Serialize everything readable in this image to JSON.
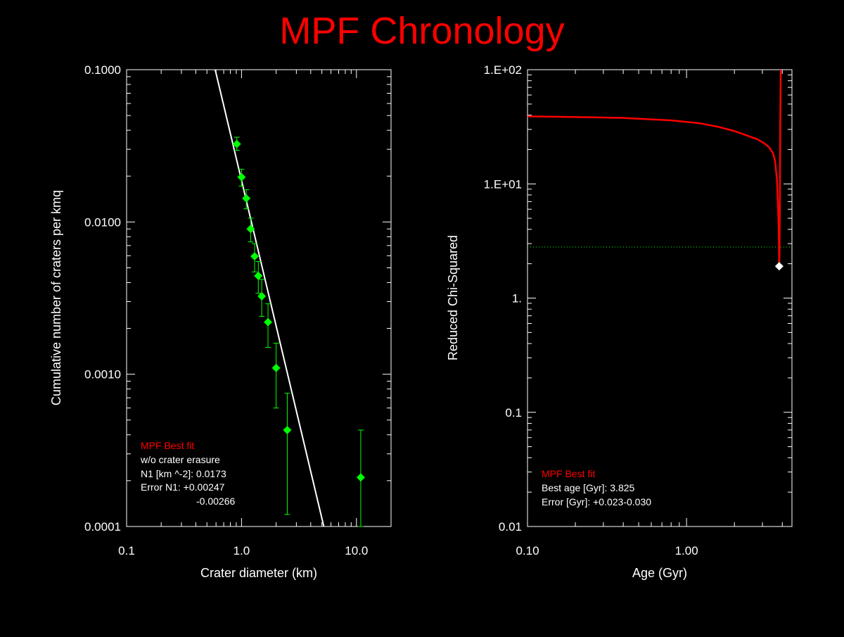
{
  "title": "MPF Chronology",
  "colors": {
    "background": "#000000",
    "title": "#ff0000",
    "axis": "#ffffff",
    "data_points": "#00ff00",
    "fit_line": "#ffffff",
    "chi_curve": "#ff0000",
    "threshold": "#00ff00",
    "best_marker": "#ffffff",
    "legend_heading": "#ff0000",
    "legend_text": "#ffffff"
  },
  "chart_data": [
    {
      "type": "scatter",
      "xlabel": "Crater diameter (km)",
      "ylabel": "Cumulative number of craters per kmq",
      "x_scale": "log",
      "y_scale": "log",
      "xlim": [
        0.1,
        20
      ],
      "ylim": [
        0.0001,
        0.1
      ],
      "x_ticks": [
        {
          "value": 0.1,
          "label": "0.1"
        },
        {
          "value": 1.0,
          "label": "1.0"
        },
        {
          "value": 10.0,
          "label": "10.0"
        }
      ],
      "y_ticks": [
        {
          "value": 0.0001,
          "label": "0.0001"
        },
        {
          "value": 0.001,
          "label": "0.0010"
        },
        {
          "value": 0.01,
          "label": "0.0100"
        },
        {
          "value": 0.1,
          "label": "0.1000"
        }
      ],
      "points": [
        {
          "x": 0.91,
          "y": 0.0325,
          "y_low": 0.0295,
          "y_high": 0.036
        },
        {
          "x": 1.0,
          "y": 0.0197,
          "y_low": 0.0172,
          "y_high": 0.0222
        },
        {
          "x": 1.1,
          "y": 0.0143,
          "y_low": 0.0122,
          "y_high": 0.0163
        },
        {
          "x": 1.2,
          "y": 0.009,
          "y_low": 0.0074,
          "y_high": 0.0106
        },
        {
          "x": 1.3,
          "y": 0.00595,
          "y_low": 0.0047,
          "y_high": 0.0072
        },
        {
          "x": 1.4,
          "y": 0.00443,
          "y_low": 0.0034,
          "y_high": 0.0055
        },
        {
          "x": 1.5,
          "y": 0.00325,
          "y_low": 0.0024,
          "y_high": 0.0042
        },
        {
          "x": 1.7,
          "y": 0.0022,
          "y_low": 0.0015,
          "y_high": 0.0029
        },
        {
          "x": 2.0,
          "y": 0.0011,
          "y_low": 0.0006,
          "y_high": 0.0016
        },
        {
          "x": 2.5,
          "y": 0.00043,
          "y_low": 0.00012,
          "y_high": 0.00075
        },
        {
          "x": 10.9,
          "y": 0.00021,
          "y_low": 0.0001,
          "y_high": 0.00043
        }
      ],
      "fit_line": [
        {
          "x": 0.59,
          "y": 0.1
        },
        {
          "x": 5.2,
          "y": 0.0001
        }
      ],
      "legend_heading": "MPF Best fit",
      "legend_lines": [
        "w/o crater erasure",
        "N1 [km ^-2]: 0.0173",
        "Error N1: +0.00247",
        "-0.00266"
      ]
    },
    {
      "type": "line",
      "xlabel": "Age (Gyr)",
      "ylabel": "Reduced Chi-Squared",
      "x_scale": "log",
      "y_scale": "log",
      "xlim": [
        0.1,
        4.6
      ],
      "ylim": [
        0.01,
        100
      ],
      "x_ticks": [
        {
          "value": 0.1,
          "label": "0.10"
        },
        {
          "value": 1.0,
          "label": "1.00"
        }
      ],
      "y_ticks": [
        {
          "value": 0.01,
          "label": "0.01"
        },
        {
          "value": 0.1,
          "label": "0.1"
        },
        {
          "value": 1,
          "label": "1."
        },
        {
          "value": 10,
          "label": "1.E+01"
        },
        {
          "value": 100,
          "label": "1.E+02"
        }
      ],
      "series": [
        {
          "x": [
            0.1,
            0.2,
            0.4,
            0.8,
            1.2,
            1.6,
            2.0,
            2.4,
            2.8,
            3.1,
            3.3,
            3.5,
            3.6,
            3.7,
            3.75,
            3.8,
            3.815,
            3.825,
            3.84,
            3.86,
            3.88,
            3.91
          ],
          "y": [
            39,
            38.5,
            37.8,
            36,
            34,
            31.5,
            29,
            26.5,
            24.5,
            22.5,
            21,
            18.5,
            16,
            11,
            7,
            4,
            2.7,
            1.9,
            2.5,
            6,
            30,
            100
          ]
        }
      ],
      "threshold_y": 2.8,
      "best_fit": {
        "x": 3.825,
        "y": 1.9
      },
      "legend_heading": "MPF Best fit",
      "legend_lines": [
        "Best age [Gyr]: 3.825",
        "Error [Gyr]: +0.023-0.030"
      ]
    }
  ]
}
